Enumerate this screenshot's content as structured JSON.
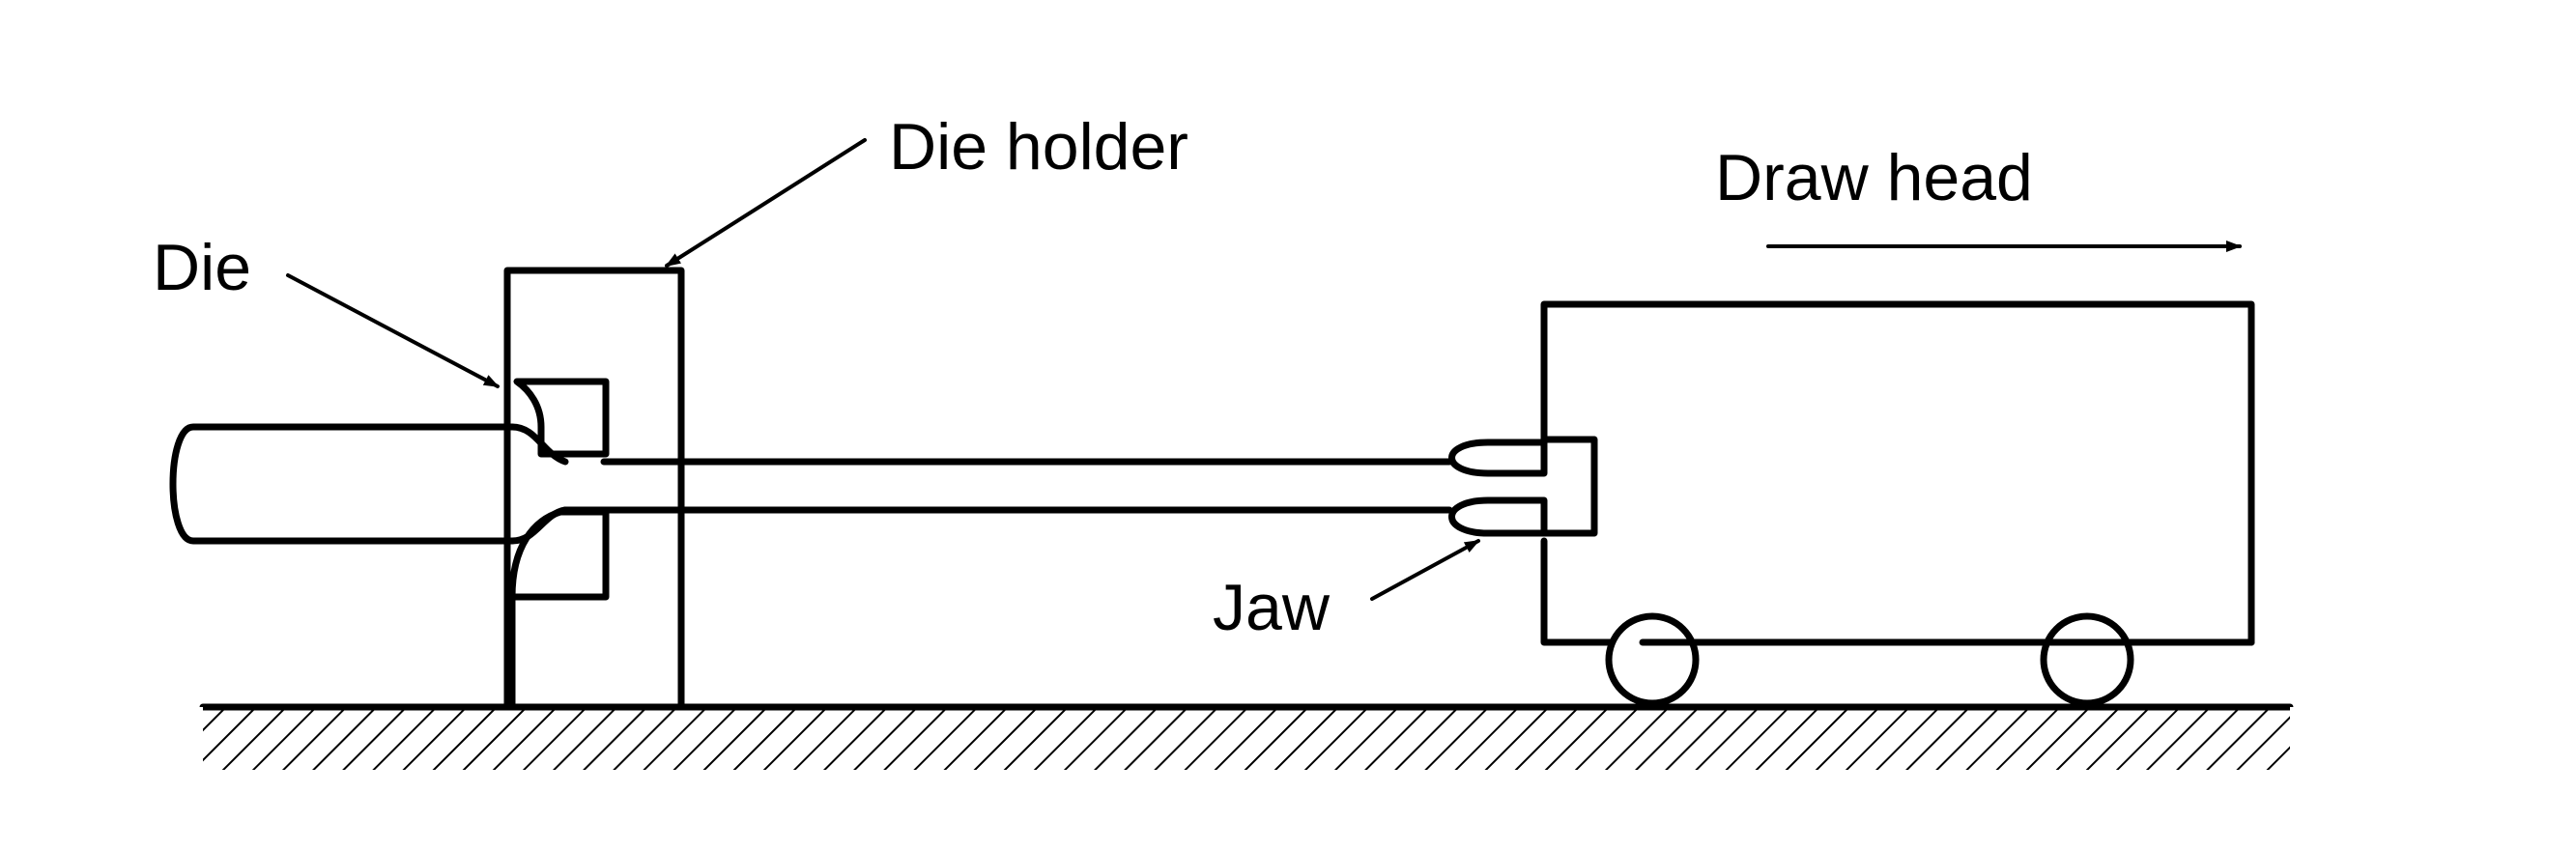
{
  "labels": {
    "die": "Die",
    "die_holder": "Die holder",
    "draw_head": "Draw head",
    "jaw": "Jaw"
  }
}
